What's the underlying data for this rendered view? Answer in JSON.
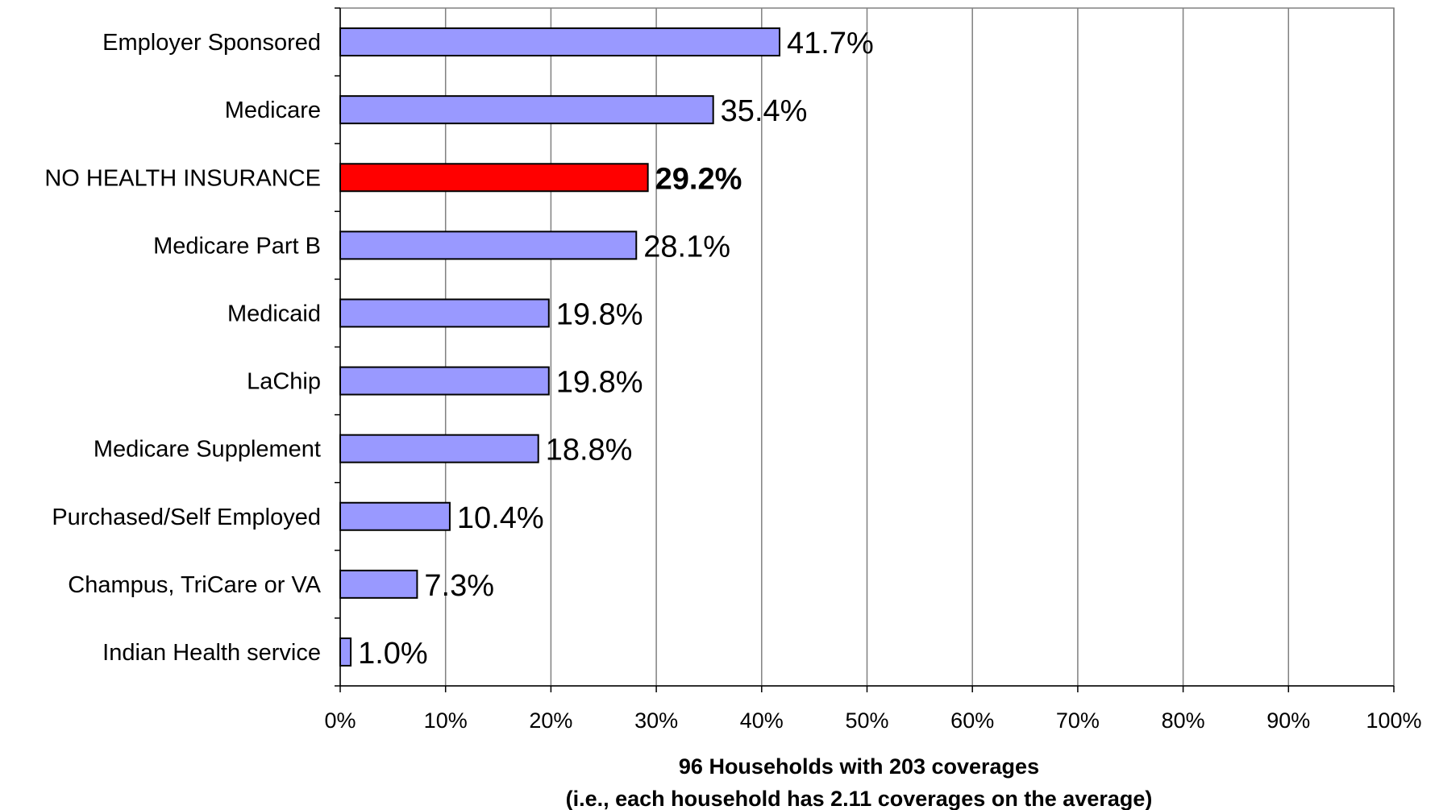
{
  "chart_data": {
    "type": "bar",
    "orientation": "horizontal",
    "categories": [
      "Employer Sponsored",
      "Medicare",
      "NO HEALTH INSURANCE",
      "Medicare Part B",
      "Medicaid",
      "LaChip",
      "Medicare Supplement",
      "Purchased/Self Employed",
      "Champus, TriCare or VA",
      "Indian Health service"
    ],
    "values": [
      41.7,
      35.4,
      29.2,
      28.1,
      19.8,
      19.8,
      18.8,
      10.4,
      7.3,
      1.0
    ],
    "value_labels": [
      "41.7%",
      "35.4%",
      "29.2%",
      "28.1%",
      "19.8%",
      "19.8%",
      "18.8%",
      "10.4%",
      "7.3%",
      "1.0%"
    ],
    "highlight_index": 2,
    "xlim": [
      0,
      100
    ],
    "x_ticks": [
      0,
      10,
      20,
      30,
      40,
      50,
      60,
      70,
      80,
      90,
      100
    ],
    "x_tick_labels": [
      "0%",
      "10%",
      "20%",
      "30%",
      "40%",
      "50%",
      "60%",
      "70%",
      "80%",
      "90%",
      "100%"
    ],
    "xlabel": "96 Households with 203 coverages",
    "xlabel_line2": "(i.e., each household has 2.11 coverages on the average)",
    "title": "",
    "ylabel": "",
    "grid": "vertical",
    "legend": "none",
    "colors": {
      "bar": "#9999ff",
      "highlight_bar": "#ff0000",
      "bar_border": "#000000",
      "grid": "#808080",
      "plot_border": "#808080",
      "axis": "#000000"
    }
  }
}
